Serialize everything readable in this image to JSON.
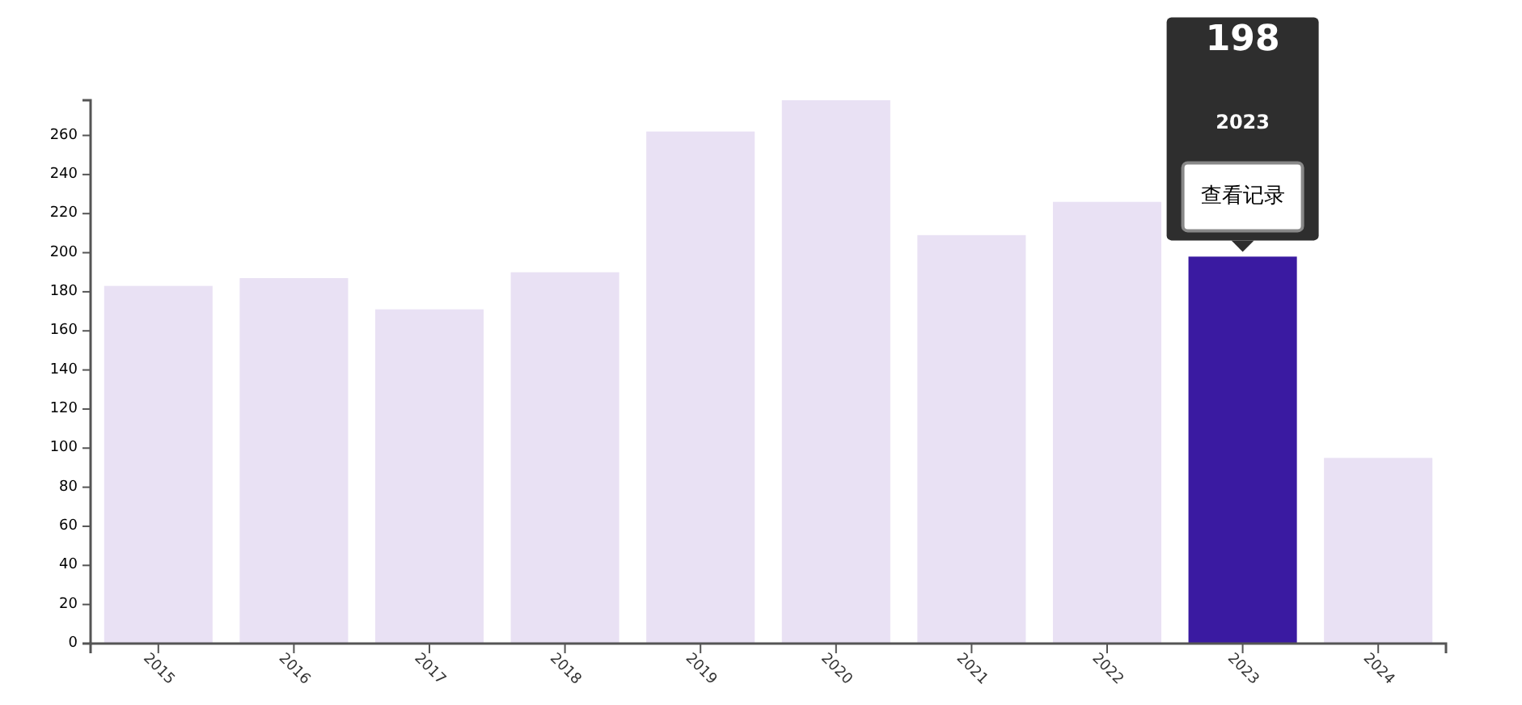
{
  "chart_data": {
    "type": "bar",
    "categories": [
      "2015",
      "2016",
      "2017",
      "2018",
      "2019",
      "2020",
      "2021",
      "2022",
      "2023",
      "2024"
    ],
    "values": [
      183,
      187,
      171,
      190,
      262,
      278,
      209,
      226,
      198,
      95
    ],
    "colors": [
      "#e9e1f4",
      "#e9e1f4",
      "#e9e1f4",
      "#e9e1f4",
      "#e9e1f4",
      "#e9e1f4",
      "#e9e1f4",
      "#e9e1f4",
      "#3a1aa1",
      "#e9e1f4"
    ],
    "annotations": [
      "198",
      "2023",
      "查看记录"
    ],
    "ylim": [
      0,
      278
    ],
    "yticks": [
      0,
      20,
      40,
      60,
      80,
      100,
      120,
      140,
      160,
      180,
      200,
      220,
      240,
      260
    ]
  }
}
